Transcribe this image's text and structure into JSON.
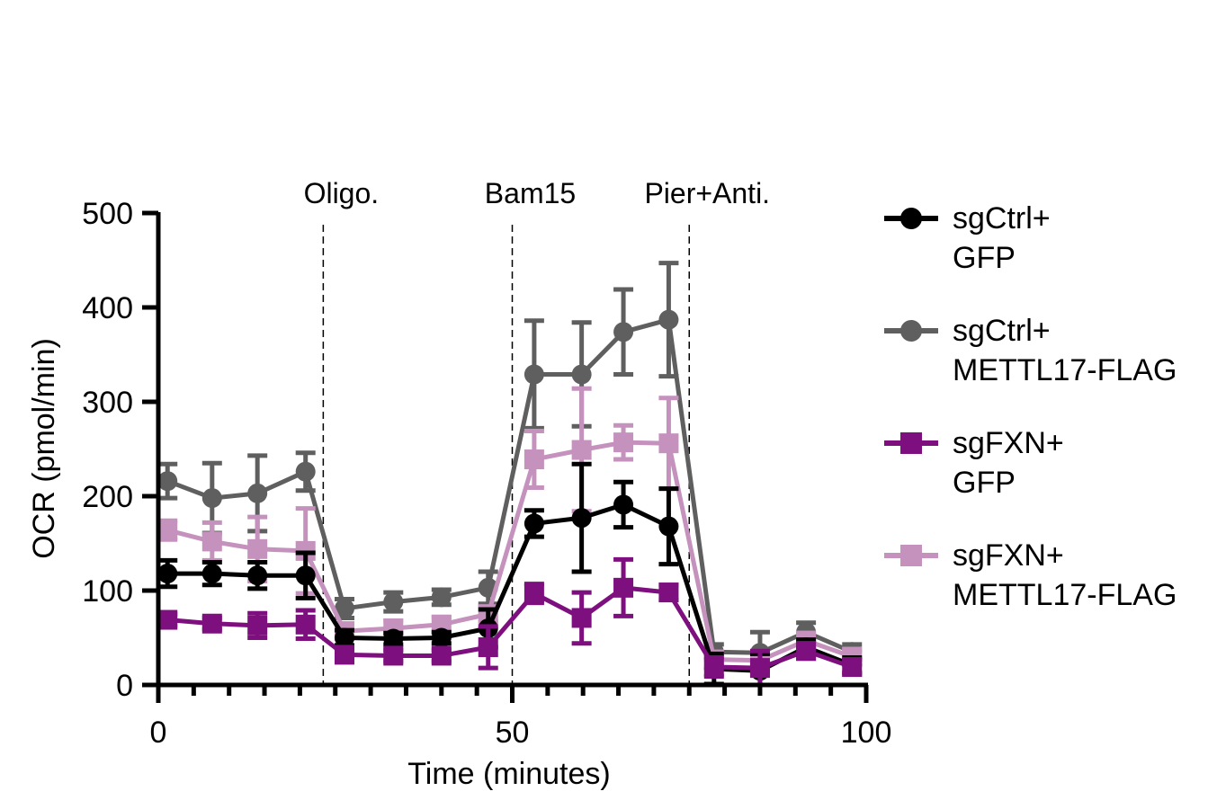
{
  "chart_data": {
    "type": "line",
    "xlabel": "Time (minutes)",
    "ylabel": "OCR (pmol/min)",
    "xlim": [
      0,
      100
    ],
    "ylim": [
      0,
      500
    ],
    "xticks": [
      "0",
      "50",
      "100"
    ],
    "yticks": [
      "0",
      "100",
      "200",
      "300",
      "400",
      "500"
    ],
    "annotations": [
      {
        "x": 23.3,
        "label": "Oligo."
      },
      {
        "x": 50,
        "label": "Bam15"
      },
      {
        "x": 75,
        "label": "Pier+Anti."
      }
    ],
    "x": [
      1.3,
      7.6,
      14.0,
      20.8,
      26.3,
      33.2,
      40.0,
      46.6,
      53.1,
      59.8,
      65.7,
      72.1,
      78.5,
      85.0,
      91.5,
      98.0
    ],
    "series": [
      {
        "name": "sgCtrl+ GFP",
        "legend_lines": [
          "sgCtrl+",
          "GFP"
        ],
        "color": "#000000",
        "marker": "circle",
        "values": [
          118,
          118,
          116,
          116,
          50,
          49,
          50,
          60,
          171,
          177,
          191,
          168,
          17,
          15,
          40,
          21
        ],
        "errors": [
          14,
          12,
          14,
          24,
          8,
          6,
          6,
          20,
          14,
          57,
          24,
          40,
          16,
          18,
          8,
          8
        ]
      },
      {
        "name": "sgCtrl+ METTL17-FLAG",
        "legend_lines": [
          "sgCtrl+",
          "METTL17-FLAG"
        ],
        "color": "#5f5f5f",
        "marker": "circle",
        "values": [
          216,
          198,
          203,
          226,
          81,
          88,
          93,
          103,
          329,
          329,
          374,
          387,
          35,
          34,
          56,
          35
        ],
        "errors": [
          18,
          37,
          40,
          20,
          10,
          10,
          8,
          17,
          57,
          55,
          45,
          60,
          8,
          22,
          10,
          8
        ]
      },
      {
        "name": "sgFXN+ GFP",
        "legend_lines": [
          "sgFXN+",
          "GFP"
        ],
        "color": "#7e0f7e",
        "marker": "square",
        "values": [
          69,
          65,
          63,
          64,
          32,
          31,
          31,
          40,
          97,
          71,
          103,
          98,
          19,
          18,
          36,
          19
        ],
        "errors": [
          6,
          6,
          13,
          15,
          6,
          6,
          6,
          22,
          10,
          27,
          30,
          8,
          10,
          18,
          8,
          8
        ]
      },
      {
        "name": "sgFXN+ METTL17-FLAG",
        "legend_lines": [
          "sgFXN+",
          "METTL17-FLAG"
        ],
        "color": "#c591bd",
        "marker": "square",
        "values": [
          164,
          152,
          144,
          142,
          57,
          60,
          64,
          75,
          239,
          249,
          257,
          256,
          27,
          26,
          47,
          30
        ],
        "errors": [
          10,
          20,
          34,
          45,
          8,
          8,
          8,
          8,
          30,
          65,
          18,
          48,
          8,
          8,
          8,
          8
        ]
      }
    ]
  }
}
